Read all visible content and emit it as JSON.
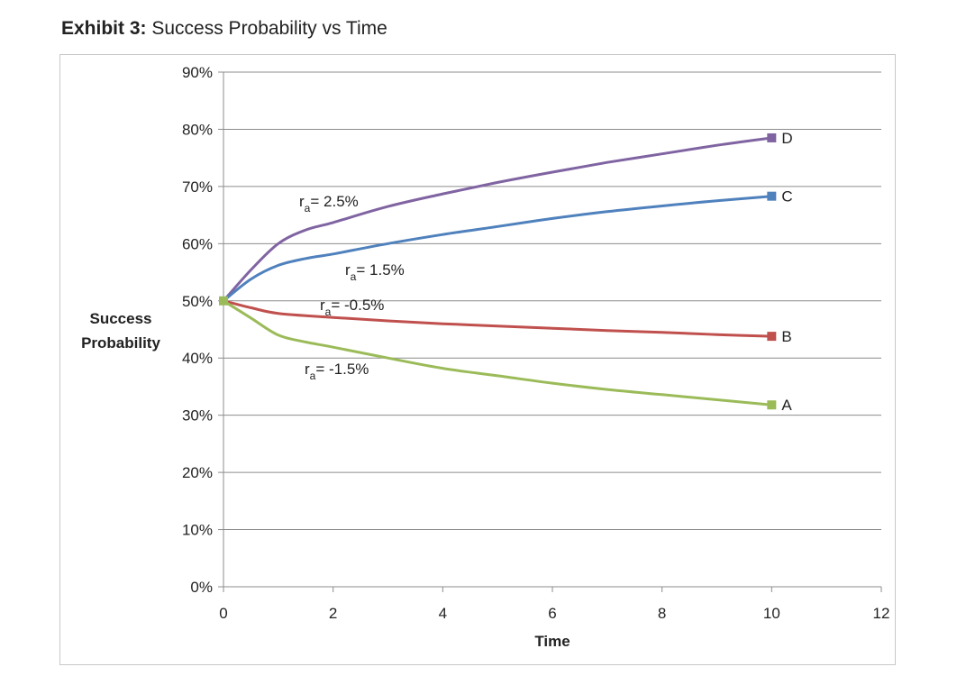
{
  "exhibit": {
    "label": "Exhibit 3:",
    "title": "Success Probability vs Time"
  },
  "chart_data": {
    "type": "line",
    "title": "Success Probability vs Time",
    "xlabel": "Time",
    "ylabel_lines": [
      "Success",
      "Probability"
    ],
    "xlim": [
      0,
      12
    ],
    "ylim": [
      0,
      0.9
    ],
    "x_ticks": [
      0,
      2,
      4,
      6,
      8,
      10,
      12
    ],
    "y_ticks": [
      0,
      0.1,
      0.2,
      0.3,
      0.4,
      0.5,
      0.6,
      0.7,
      0.8,
      0.9
    ],
    "x_tick_labels": [
      "0",
      "2",
      "4",
      "6",
      "8",
      "10",
      "12"
    ],
    "y_tick_labels": [
      "0%",
      "10%",
      "20%",
      "30%",
      "40%",
      "50%",
      "60%",
      "70%",
      "80%",
      "90%"
    ],
    "grid": "horizontal",
    "legend": "none",
    "series": [
      {
        "label": "D",
        "annotation": "r_a= 2.5%",
        "color": "#8064a2",
        "points": [
          [
            0,
            0.5
          ],
          [
            0.5,
            0.554
          ],
          [
            1,
            0.6
          ],
          [
            1.5,
            0.624
          ],
          [
            2,
            0.637
          ],
          [
            3,
            0.665
          ],
          [
            4,
            0.687
          ],
          [
            5,
            0.707
          ],
          [
            6,
            0.725
          ],
          [
            7,
            0.742
          ],
          [
            8,
            0.757
          ],
          [
            9,
            0.772
          ],
          [
            10,
            0.785
          ]
        ]
      },
      {
        "label": "C",
        "annotation": "r_a= 1.5%",
        "color": "#4f81bd",
        "points": [
          [
            0,
            0.5
          ],
          [
            0.5,
            0.538
          ],
          [
            1,
            0.562
          ],
          [
            1.5,
            0.574
          ],
          [
            2,
            0.582
          ],
          [
            3,
            0.6
          ],
          [
            4,
            0.616
          ],
          [
            5,
            0.63
          ],
          [
            6,
            0.644
          ],
          [
            7,
            0.656
          ],
          [
            8,
            0.666
          ],
          [
            9,
            0.675
          ],
          [
            10,
            0.683
          ]
        ]
      },
      {
        "label": "B",
        "annotation": "r_a= -0.5%",
        "color": "#c0504d",
        "points": [
          [
            0,
            0.5
          ],
          [
            0.5,
            0.488
          ],
          [
            1,
            0.478
          ],
          [
            2,
            0.471
          ],
          [
            3,
            0.465
          ],
          [
            4,
            0.46
          ],
          [
            5,
            0.456
          ],
          [
            6,
            0.452
          ],
          [
            7,
            0.448
          ],
          [
            8,
            0.445
          ],
          [
            9,
            0.441
          ],
          [
            10,
            0.438
          ]
        ]
      },
      {
        "label": "A",
        "annotation": "r_a= -1.5%",
        "color": "#9bbb59",
        "points": [
          [
            0,
            0.5
          ],
          [
            0.5,
            0.47
          ],
          [
            1,
            0.44
          ],
          [
            1.5,
            0.428
          ],
          [
            2,
            0.419
          ],
          [
            3,
            0.4
          ],
          [
            4,
            0.382
          ],
          [
            5,
            0.369
          ],
          [
            6,
            0.356
          ],
          [
            7,
            0.345
          ],
          [
            8,
            0.336
          ],
          [
            9,
            0.327
          ],
          [
            10,
            0.318
          ]
        ]
      }
    ]
  }
}
